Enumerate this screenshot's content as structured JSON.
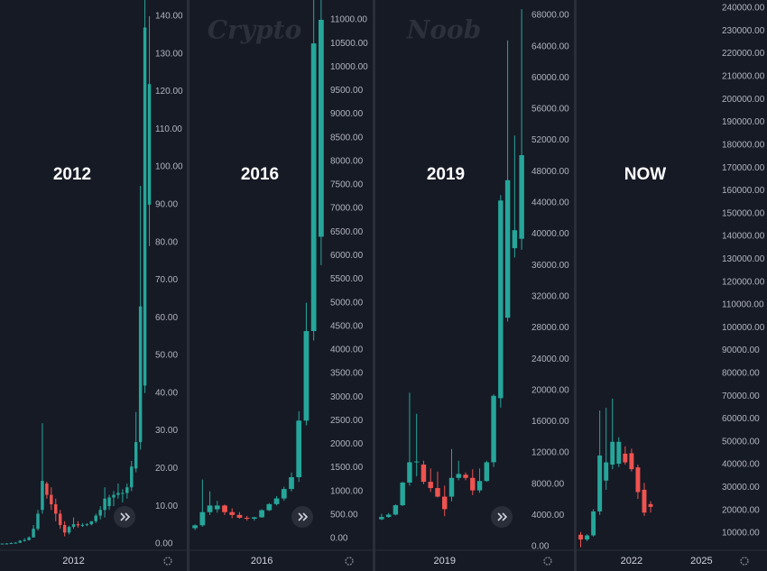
{
  "chart_data": [
    {
      "type": "candlestick",
      "annotation": "2012",
      "up_color": "#26a69a",
      "down_color": "#ef5350",
      "categories": [
        null,
        null,
        null,
        null,
        null,
        null,
        null,
        null,
        null,
        null,
        null,
        null,
        null,
        null,
        null,
        null,
        "2012",
        null,
        null,
        null,
        null,
        null,
        null,
        null,
        null,
        null,
        null,
        null,
        null,
        null,
        null,
        null,
        null,
        null
      ],
      "open": [
        0.05,
        0.08,
        0.1,
        0.2,
        0.3,
        0.8,
        1.0,
        1.7,
        4,
        9,
        16,
        13,
        10.5,
        8,
        5,
        3,
        4.5,
        5.2,
        4.9,
        5,
        5.2,
        6,
        7.5,
        9,
        10,
        12.3,
        13,
        13.5,
        13.5,
        15,
        20,
        27,
        42,
        90
      ],
      "high": [
        0.1,
        0.2,
        0.4,
        0.5,
        1.0,
        1.5,
        2.0,
        5,
        9,
        32,
        16.5,
        15,
        12,
        9,
        6,
        4.8,
        7,
        6,
        5.5,
        5.5,
        6,
        8,
        10,
        15,
        13,
        14,
        16,
        14.5,
        16,
        22,
        35,
        95,
        145,
        140
      ],
      "low": [
        0.05,
        0.06,
        0.1,
        0.2,
        0.25,
        0.6,
        0.9,
        1.7,
        3.5,
        8,
        12,
        9,
        6,
        4,
        2,
        2.5,
        4,
        4.3,
        4.5,
        4.7,
        4.9,
        5.5,
        6.5,
        7,
        9,
        10,
        12,
        11,
        12,
        14,
        19,
        25,
        40,
        79
      ],
      "close": [
        0.08,
        0.1,
        0.2,
        0.3,
        0.8,
        1.0,
        1.7,
        4,
        8,
        16.7,
        13,
        10.5,
        8,
        5,
        3,
        4.5,
        5.2,
        4.9,
        5,
        5.2,
        6,
        7.5,
        9,
        12,
        12.3,
        13,
        13.5,
        13.5,
        15,
        20.5,
        27,
        63,
        137,
        122
      ],
      "ylim": [
        -1.7,
        144.3
      ],
      "yticks": [
        {
          "value": 0,
          "label": "0.00"
        },
        {
          "value": 10,
          "label": "10.00"
        },
        {
          "value": 20,
          "label": "20.00"
        },
        {
          "value": 30,
          "label": "30.00"
        },
        {
          "value": 40,
          "label": "40.00"
        },
        {
          "value": 50,
          "label": "50.00"
        },
        {
          "value": 60,
          "label": "60.00"
        },
        {
          "value": 70,
          "label": "70.00"
        },
        {
          "value": 80,
          "label": "80.00"
        },
        {
          "value": 90,
          "label": "90.00"
        },
        {
          "value": 100,
          "label": "100.00"
        },
        {
          "value": 110,
          "label": "110.00"
        },
        {
          "value": 120,
          "label": "120.00"
        },
        {
          "value": 130,
          "label": "130.00"
        },
        {
          "value": 140,
          "label": "140.00"
        }
      ]
    },
    {
      "type": "candlestick",
      "annotation": "2016",
      "watermark": "Crypto",
      "up_color": "#26a69a",
      "down_color": "#ef5350",
      "categories": [
        null,
        null,
        null,
        null,
        null,
        null,
        null,
        null,
        null,
        "2016",
        null,
        null,
        null,
        null,
        null,
        null,
        null,
        null
      ],
      "open": [
        220,
        280,
        560,
        620,
        700,
        560,
        500,
        440,
        420,
        450,
        600,
        730,
        850,
        1050,
        1300,
        2500,
        4400,
        6400
      ],
      "high": [
        300,
        1250,
        1000,
        800,
        720,
        640,
        560,
        480,
        460,
        620,
        750,
        900,
        1100,
        1400,
        2700,
        5000,
        11500,
        11500
      ],
      "low": [
        180,
        250,
        500,
        550,
        500,
        430,
        420,
        380,
        380,
        440,
        580,
        700,
        800,
        1000,
        1200,
        2400,
        4200,
        5800
      ],
      "close": [
        280,
        560,
        700,
        700,
        560,
        500,
        440,
        420,
        450,
        600,
        730,
        850,
        1050,
        1300,
        2500,
        4400,
        10500,
        11000
      ],
      "ylim": [
        -249,
        11421
      ],
      "yticks": [
        {
          "value": 0,
          "label": "0.00"
        },
        {
          "value": 500,
          "label": "500.00"
        },
        {
          "value": 1000,
          "label": "1000.00"
        },
        {
          "value": 1500,
          "label": "1500.00"
        },
        {
          "value": 2000,
          "label": "2000.00"
        },
        {
          "value": 2500,
          "label": "2500.00"
        },
        {
          "value": 3000,
          "label": "3000.00"
        },
        {
          "value": 3500,
          "label": "3500.00"
        },
        {
          "value": 4000,
          "label": "4000.00"
        },
        {
          "value": 4500,
          "label": "4500.00"
        },
        {
          "value": 5000,
          "label": "5000.00"
        },
        {
          "value": 5500,
          "label": "5500.00"
        },
        {
          "value": 6000,
          "label": "6000.00"
        },
        {
          "value": 6500,
          "label": "6500.00"
        },
        {
          "value": 7000,
          "label": "7000.00"
        },
        {
          "value": 7500,
          "label": "7500.00"
        },
        {
          "value": 8000,
          "label": "8000.00"
        },
        {
          "value": 8500,
          "label": "8500.00"
        },
        {
          "value": 9000,
          "label": "9000.00"
        },
        {
          "value": 9500,
          "label": "9500.00"
        },
        {
          "value": 10000,
          "label": "10000.00"
        },
        {
          "value": 10500,
          "label": "10500.00"
        },
        {
          "value": 11000,
          "label": "11000.00"
        }
      ]
    },
    {
      "type": "candlestick",
      "annotation": "2019",
      "watermark": "Noob",
      "up_color": "#26a69a",
      "down_color": "#ef5350",
      "categories": [
        null,
        null,
        null,
        null,
        null,
        null,
        null,
        null,
        null,
        "2019",
        null,
        null,
        null,
        null,
        null,
        null,
        null,
        null,
        null,
        null,
        null
      ],
      "open": [
        3500,
        3800,
        4100,
        5300,
        8200,
        10800,
        10500,
        8300,
        7500,
        6400,
        6400,
        8800,
        9200,
        8800,
        7200,
        8400,
        10800,
        19000,
        29300,
        38200,
        39400
      ],
      "high": [
        4200,
        4300,
        5400,
        8300,
        19700,
        17000,
        11000,
        10000,
        9600,
        7800,
        12500,
        11000,
        9500,
        9900,
        10000,
        11000,
        19500,
        45000,
        64800,
        52600,
        68800
      ],
      "low": [
        3400,
        3700,
        4000,
        5200,
        7800,
        9000,
        8000,
        7000,
        6300,
        3900,
        5800,
        8500,
        8500,
        6600,
        6900,
        8300,
        10200,
        17800,
        28800,
        37000,
        38000
      ],
      "close": [
        3800,
        4100,
        5300,
        8200,
        10800,
        10900,
        8300,
        7500,
        6400,
        4800,
        8800,
        9300,
        8800,
        7200,
        8400,
        10800,
        19300,
        44300,
        46900,
        40500,
        50100
      ],
      "ylim": [
        -462,
        69962
      ],
      "yticks": [
        {
          "value": 0,
          "label": "0.00"
        },
        {
          "value": 4000,
          "label": "4000.00"
        },
        {
          "value": 8000,
          "label": "8000.00"
        },
        {
          "value": 12000,
          "label": "12000.00"
        },
        {
          "value": 16000,
          "label": "16000.00"
        },
        {
          "value": 20000,
          "label": "20000.00"
        },
        {
          "value": 24000,
          "label": "24000.00"
        },
        {
          "value": 28000,
          "label": "28000.00"
        },
        {
          "value": 32000,
          "label": "32000.00"
        },
        {
          "value": 36000,
          "label": "36000.00"
        },
        {
          "value": 40000,
          "label": "40000.00"
        },
        {
          "value": 44000,
          "label": "44000.00"
        },
        {
          "value": 48000,
          "label": "48000.00"
        },
        {
          "value": 52000,
          "label": "52000.00"
        },
        {
          "value": 56000,
          "label": "56000.00"
        },
        {
          "value": 60000,
          "label": "60000.00"
        },
        {
          "value": 64000,
          "label": "64000.00"
        },
        {
          "value": 68000,
          "label": "68000.00"
        }
      ]
    },
    {
      "type": "candlestick",
      "annotation": "NOW",
      "up_color": "#26a69a",
      "down_color": "#ef5350",
      "categories": [
        null,
        null,
        null,
        null,
        null,
        null,
        null,
        null,
        "2022",
        null,
        null,
        null,
        null,
        null,
        null,
        null,
        null,
        null,
        null,
        "2025",
        null,
        null
      ],
      "open": [
        9300,
        7200,
        9000,
        19500,
        33000,
        40000,
        40400,
        44800,
        45000,
        38800,
        29000,
        22700,
        null,
        null,
        null,
        null,
        null,
        null,
        null,
        null,
        null,
        null
      ],
      "high": [
        10500,
        9500,
        20500,
        63700,
        64900,
        68900,
        52000,
        48000,
        47000,
        40000,
        32000,
        24000,
        null,
        null,
        null,
        null,
        null,
        null,
        null,
        null,
        null,
        null
      ],
      "low": [
        3800,
        6500,
        8500,
        18000,
        29000,
        38000,
        39000,
        40000,
        37000,
        25000,
        17500,
        19000,
        null,
        null,
        null,
        null,
        null,
        null,
        null,
        null,
        null,
        null
      ],
      "close": [
        7200,
        9000,
        19500,
        44000,
        41000,
        50000,
        50000,
        41000,
        38000,
        28000,
        19000,
        21500,
        null,
        null,
        null,
        null,
        null,
        null,
        null,
        null,
        null,
        null
      ],
      "ylim": [
        2491,
        243557
      ],
      "yticks": [
        {
          "value": 10000,
          "label": "10000.00"
        },
        {
          "value": 20000,
          "label": "20000.00"
        },
        {
          "value": 30000,
          "label": "30000.00"
        },
        {
          "value": 40000,
          "label": "40000.00"
        },
        {
          "value": 50000,
          "label": "50000.00"
        },
        {
          "value": 60000,
          "label": "60000.00"
        },
        {
          "value": 70000,
          "label": "70000.00"
        },
        {
          "value": 80000,
          "label": "80000.00"
        },
        {
          "value": 90000,
          "label": "90000.00"
        },
        {
          "value": 100000,
          "label": "100000.00"
        },
        {
          "value": 110000,
          "label": "110000.00"
        },
        {
          "value": 120000,
          "label": "120000.00"
        },
        {
          "value": 130000,
          "label": "130000.00"
        },
        {
          "value": 140000,
          "label": "140000.00"
        },
        {
          "value": 150000,
          "label": "150000.00"
        },
        {
          "value": 160000,
          "label": "160000.00"
        },
        {
          "value": 170000,
          "label": "170000.00"
        },
        {
          "value": 180000,
          "label": "180000.00"
        },
        {
          "value": 190000,
          "label": "190000.00"
        },
        {
          "value": 200000,
          "label": "200000.00"
        },
        {
          "value": 210000,
          "label": "210000.00"
        },
        {
          "value": 220000,
          "label": "220000.00"
        },
        {
          "value": 230000,
          "label": "230000.00"
        },
        {
          "value": 240000,
          "label": "240000.00"
        }
      ]
    }
  ]
}
